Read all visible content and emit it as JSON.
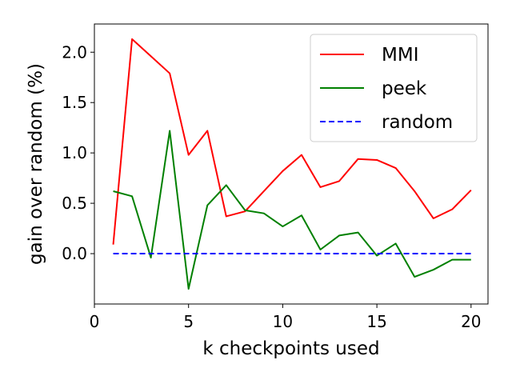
{
  "chart_data": {
    "type": "line",
    "title": "",
    "xlabel": "k checkpoints used",
    "ylabel": "gain over random (%)",
    "xlim": [
      0,
      20.9
    ],
    "ylim": [
      -0.5,
      2.28
    ],
    "xticks": [
      0,
      5,
      10,
      15,
      20
    ],
    "xtick_labels": [
      "0",
      "5",
      "10",
      "15",
      "20"
    ],
    "yticks": [
      0.0,
      0.5,
      1.0,
      1.5,
      2.0
    ],
    "ytick_labels": [
      "0.0",
      "0.5",
      "1.0",
      "1.5",
      "2.0"
    ],
    "grid": false,
    "legend_position": "top-right",
    "x": [
      1,
      2,
      3,
      4,
      5,
      6,
      7,
      8,
      9,
      10,
      11,
      12,
      13,
      14,
      15,
      16,
      17,
      18,
      19,
      20
    ],
    "series": [
      {
        "name": "MMI",
        "color": "#ff0000",
        "dash": "solid",
        "values": [
          0.09,
          2.13,
          1.96,
          1.79,
          0.98,
          1.22,
          0.37,
          0.42,
          0.62,
          0.82,
          0.98,
          0.66,
          0.72,
          0.94,
          0.93,
          0.85,
          0.62,
          0.35,
          0.44,
          0.63
        ]
      },
      {
        "name": "peek",
        "color": "#008000",
        "dash": "solid",
        "values": [
          0.62,
          0.57,
          -0.04,
          1.22,
          -0.35,
          0.48,
          0.68,
          0.43,
          0.4,
          0.27,
          0.38,
          0.04,
          0.18,
          0.21,
          -0.02,
          0.1,
          -0.23,
          -0.16,
          -0.06,
          -0.06
        ]
      },
      {
        "name": "random",
        "color": "#0000ff",
        "dash": "dashed",
        "values": [
          0,
          0,
          0,
          0,
          0,
          0,
          0,
          0,
          0,
          0,
          0,
          0,
          0,
          0,
          0,
          0,
          0,
          0,
          0,
          0
        ]
      }
    ]
  }
}
